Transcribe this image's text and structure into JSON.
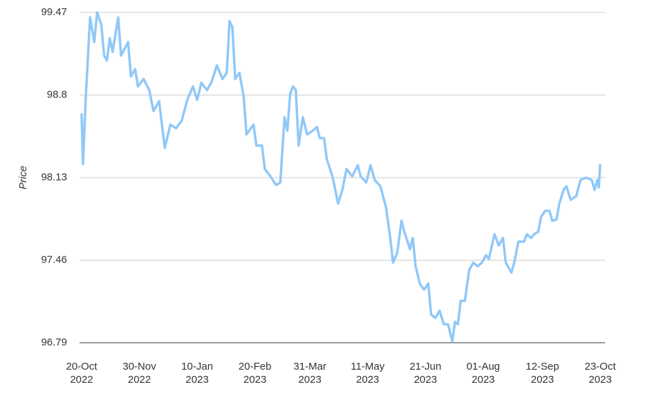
{
  "chart_data": {
    "type": "line",
    "y_label": "Price",
    "x": [
      "2022-10-20",
      "2022-10-21",
      "2022-10-23",
      "2022-10-26",
      "2022-10-29",
      "2022-10-31",
      "2022-11-03",
      "2022-11-05",
      "2022-11-07",
      "2022-11-09",
      "2022-11-11",
      "2022-11-15",
      "2022-11-17",
      "2022-11-22",
      "2022-11-24",
      "2022-11-27",
      "2022-11-29",
      "2022-12-03",
      "2022-12-07",
      "2022-12-10",
      "2022-12-14",
      "2022-12-18",
      "2022-12-22",
      "2022-12-26",
      "2022-12-30",
      "2023-01-03",
      "2023-01-07",
      "2023-01-10",
      "2023-01-13",
      "2023-01-17",
      "2023-01-20",
      "2023-01-24",
      "2023-01-28",
      "2023-01-31",
      "2023-02-02",
      "2023-02-04",
      "2023-02-06",
      "2023-02-09",
      "2023-02-12",
      "2023-02-14",
      "2023-02-19",
      "2023-02-21",
      "2023-02-25",
      "2023-02-27",
      "2023-03-03",
      "2023-03-07",
      "2023-03-10",
      "2023-03-13",
      "2023-03-15",
      "2023-03-17",
      "2023-03-19",
      "2023-03-21",
      "2023-03-23",
      "2023-03-26",
      "2023-03-29",
      "2023-04-02",
      "2023-04-05",
      "2023-04-07",
      "2023-04-10",
      "2023-04-12",
      "2023-04-16",
      "2023-04-20",
      "2023-04-23",
      "2023-04-26",
      "2023-04-30",
      "2023-05-04",
      "2023-05-06",
      "2023-05-10",
      "2023-05-13",
      "2023-05-16",
      "2023-05-20",
      "2023-05-24",
      "2023-05-27",
      "2023-05-29",
      "2023-06-01",
      "2023-06-04",
      "2023-06-06",
      "2023-06-10",
      "2023-06-12",
      "2023-06-14",
      "2023-06-17",
      "2023-06-20",
      "2023-06-23",
      "2023-06-25",
      "2023-06-28",
      "2023-07-01",
      "2023-07-04",
      "2023-07-07",
      "2023-07-10",
      "2023-07-12",
      "2023-07-14",
      "2023-07-16",
      "2023-07-19",
      "2023-07-22",
      "2023-07-25",
      "2023-07-28",
      "2023-07-31",
      "2023-08-03",
      "2023-08-05",
      "2023-08-09",
      "2023-08-12",
      "2023-08-15",
      "2023-08-17",
      "2023-08-21",
      "2023-08-23",
      "2023-08-26",
      "2023-08-30",
      "2023-09-01",
      "2023-09-04",
      "2023-09-06",
      "2023-09-09",
      "2023-09-11",
      "2023-09-14",
      "2023-09-17",
      "2023-09-19",
      "2023-09-22",
      "2023-09-24",
      "2023-09-27",
      "2023-09-29",
      "2023-10-02",
      "2023-10-06",
      "2023-10-09",
      "2023-10-13",
      "2023-10-17",
      "2023-10-19",
      "2023-10-21",
      "2023-10-22",
      "2023-10-23"
    ],
    "series": [
      {
        "color": "#90c8f8",
        "values": [
          98.65,
          98.24,
          98.79,
          99.43,
          99.23,
          99.47,
          99.37,
          99.12,
          99.08,
          99.26,
          99.15,
          99.43,
          99.12,
          99.23,
          98.95,
          99.01,
          98.87,
          98.93,
          98.84,
          98.67,
          98.75,
          98.37,
          98.56,
          98.53,
          98.59,
          98.76,
          98.87,
          98.76,
          98.9,
          98.84,
          98.9,
          99.04,
          98.93,
          98.98,
          99.4,
          99.35,
          98.93,
          98.98,
          98.79,
          98.48,
          98.56,
          98.39,
          98.39,
          98.2,
          98.14,
          98.07,
          98.09,
          98.62,
          98.51,
          98.81,
          98.87,
          98.84,
          98.39,
          98.62,
          98.48,
          98.51,
          98.54,
          98.45,
          98.45,
          98.28,
          98.14,
          97.92,
          98.03,
          98.2,
          98.14,
          98.23,
          98.14,
          98.09,
          98.23,
          98.11,
          98.06,
          97.89,
          97.64,
          97.44,
          97.52,
          97.78,
          97.69,
          97.55,
          97.64,
          97.41,
          97.27,
          97.22,
          97.27,
          97.02,
          96.99,
          97.05,
          96.94,
          96.94,
          96.8,
          96.96,
          96.94,
          97.13,
          97.13,
          97.38,
          97.44,
          97.41,
          97.44,
          97.5,
          97.47,
          97.67,
          97.58,
          97.64,
          97.44,
          97.36,
          97.44,
          97.61,
          97.61,
          97.67,
          97.64,
          97.67,
          97.69,
          97.81,
          97.86,
          97.86,
          97.78,
          97.79,
          97.92,
          98.03,
          98.06,
          97.95,
          97.98,
          98.11,
          98.13,
          98.11,
          98.03,
          98.11,
          98.05,
          98.24
        ]
      }
    ],
    "xlim": [
      "2022-10-20",
      "2023-10-23"
    ],
    "xticks": [
      {
        "value": "2022-10-20",
        "label": "20-Oct 2022"
      },
      {
        "value": "2022-11-30",
        "label": "30-Nov 2022"
      },
      {
        "value": "2023-01-10",
        "label": "10-Jan 2023"
      },
      {
        "value": "2023-02-20",
        "label": "20-Feb 2023"
      },
      {
        "value": "2023-03-31",
        "label": "31-Mar 2023"
      },
      {
        "value": "2023-05-11",
        "label": "11-May 2023"
      },
      {
        "value": "2023-06-21",
        "label": "21-Jun 2023"
      },
      {
        "value": "2023-08-01",
        "label": "01-Aug 2023"
      },
      {
        "value": "2023-09-12",
        "label": "12-Sep 2023"
      },
      {
        "value": "2023-10-23",
        "label": "23-Oct 2023"
      }
    ],
    "ylim": [
      96.79,
      99.47
    ],
    "yticks": [
      96.79,
      97.46,
      98.13,
      98.8,
      99.47
    ],
    "grid": true
  }
}
